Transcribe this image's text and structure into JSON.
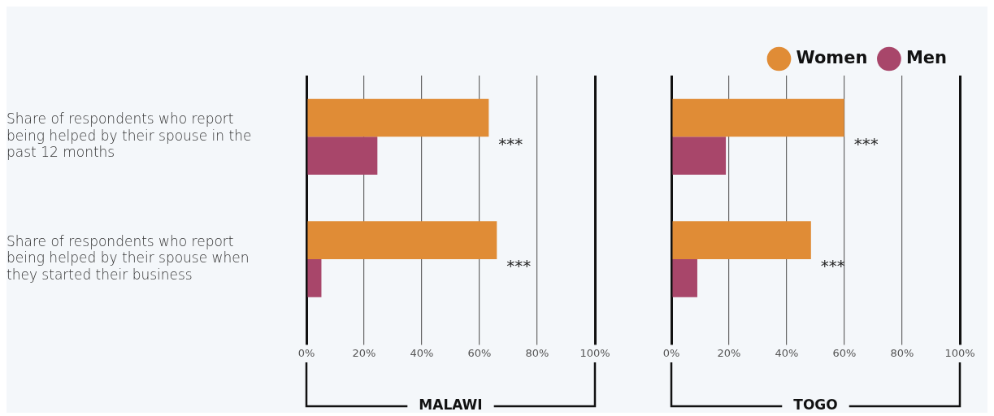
{
  "chart_data": [
    {
      "type": "bar",
      "orientation": "horizontal",
      "categories": [
        "Share of respondents who report being helped by their spouse in the past 12 months",
        "Share of respondents who report being helped by their spouse when they started their business"
      ],
      "series": [
        {
          "color": "#e08c36",
          "values": [
            63.2,
            66.0
          ]
        },
        {
          "color": "#a8466a",
          "values": [
            24.6,
            5.2
          ]
        }
      ],
      "xlabel": "MALAWI",
      "xlim": [
        0,
        100
      ],
      "xticks": [
        {
          "value": 0,
          "label": "0%"
        },
        {
          "value": 20,
          "label": "20%"
        },
        {
          "value": 40,
          "label": "40%"
        },
        {
          "value": 60,
          "label": "60%"
        },
        {
          "value": 80,
          "label": "80%"
        },
        {
          "value": 100,
          "label": "100%"
        }
      ],
      "grid": "x",
      "legend": false,
      "annotations": [
        {
          "text": "***",
          "x": 63.2,
          "y": "Share of respondents who report being helped by their spouse in the past 12 months"
        },
        {
          "text": "***",
          "x": 66.0,
          "y": "Share of respondents who report being helped by their spouse when they started their business"
        }
      ]
    },
    {
      "type": "bar",
      "orientation": "horizontal",
      "categories": [
        null,
        null
      ],
      "series": [
        {
          "name": "Women",
          "color": "#e08c36",
          "values": [
            59.9,
            48.4
          ]
        },
        {
          "name": "Men",
          "color": "#a8466a",
          "values": [
            18.9,
            9.0
          ]
        }
      ],
      "xlabel": "TOGO",
      "xlim": [
        0,
        100
      ],
      "xticks": [
        {
          "value": 0,
          "label": "0%"
        },
        {
          "value": 20,
          "label": "20%"
        },
        {
          "value": 40,
          "label": "40%"
        },
        {
          "value": 60,
          "label": "60%"
        },
        {
          "value": 80,
          "label": "80%"
        },
        {
          "value": 100,
          "label": "100%"
        }
      ],
      "grid": "x",
      "legend": "top right",
      "tick_labels": "x",
      "annotations": [
        "***",
        "***"
      ]
    }
  ]
}
